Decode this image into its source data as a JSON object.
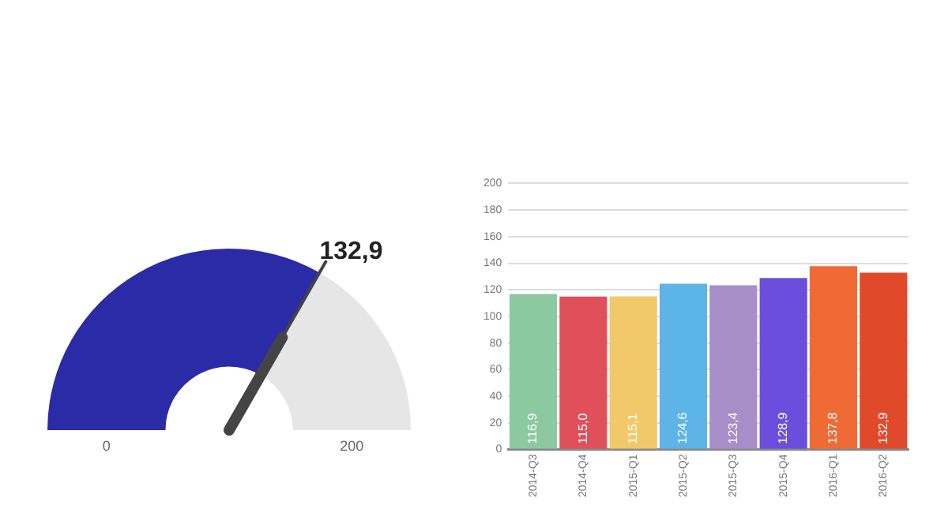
{
  "chart_data": [
    {
      "type": "donut",
      "categories": [
        null,
        null
      ],
      "values": [
        132.9,
        67.1
      ],
      "colors": [
        "#2b2ba8",
        "#e6e6e6"
      ],
      "value_labels": [
        "132,9",
        null
      ],
      "annotations": [
        "0",
        "200"
      ]
    },
    {
      "type": "bar",
      "categories": [
        "2014-Q3",
        "2014-Q4",
        "2015-Q1",
        "2015-Q2",
        "2015-Q3",
        "2015-Q4",
        "2016-Q1",
        "2016-Q2"
      ],
      "values": [
        116.9,
        115.0,
        115.1,
        124.6,
        123.4,
        128.9,
        137.8,
        132.9
      ],
      "colors": [
        "#8cc9a0",
        "#e0505a",
        "#f2c96a",
        "#5db4e6",
        "#a88ec8",
        "#6b4fdc",
        "#f06a35",
        "#e04a2a"
      ],
      "value_labels": [
        "116,9",
        "115,0",
        "115,1",
        "124,6",
        "123,4",
        "128,9",
        "137,8",
        "132,9"
      ],
      "ylim": [
        0,
        200
      ],
      "yticks": [
        0,
        20,
        40,
        60,
        80,
        100,
        120,
        140,
        160,
        180,
        200
      ],
      "grid": "y"
    }
  ]
}
